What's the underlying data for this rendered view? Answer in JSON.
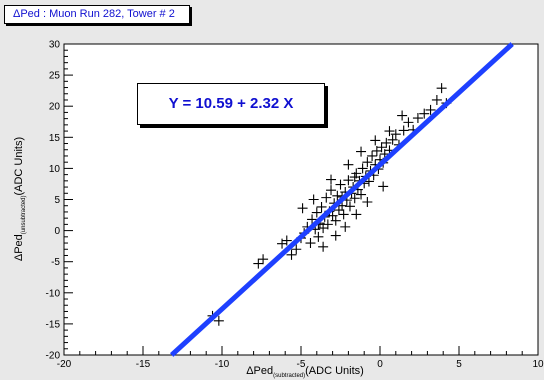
{
  "chart_data": {
    "type": "scatter",
    "title": "ΔPed : Muon Run 282, Tower # 2",
    "xlabel_main": "ΔPed",
    "xlabel_sub": "(subtracted)",
    "xlabel_units": "(ADC Units)",
    "ylabel_main": "ΔPed",
    "ylabel_sub": "(unsubtracted)",
    "ylabel_units": "(ADC Units)",
    "xlim": [
      -20,
      10
    ],
    "ylim": [
      -20,
      30
    ],
    "xticks": [
      "-20",
      "-15",
      "-10",
      "-5",
      "0",
      "5",
      "10"
    ],
    "yticks": [
      "-20",
      "-15",
      "-10",
      "-5",
      "0",
      "5",
      "10",
      "15",
      "20",
      "25",
      "30"
    ],
    "fit": {
      "label": "Y = 10.59 + 2.32 X",
      "intercept": 10.59,
      "slope": 2.32,
      "color": "#1e40ff"
    },
    "marker_color": "#000000",
    "series": [
      {
        "values": [
          [
            -10.6,
            -13.7
          ],
          [
            -10.2,
            -14.5
          ],
          [
            -7.7,
            -5.3
          ],
          [
            -7.4,
            -4.6
          ],
          [
            -6.2,
            -2.1
          ],
          [
            -5.9,
            -1.6
          ],
          [
            -5.6,
            -3.9
          ],
          [
            -5.3,
            -3.0
          ],
          [
            -5.0,
            -1.2
          ],
          [
            -4.8,
            -0.4
          ],
          [
            -4.6,
            0.6
          ],
          [
            -4.4,
            -2.0
          ],
          [
            -4.3,
            1.8
          ],
          [
            -4.1,
            0.2
          ],
          [
            -4.0,
            2.9
          ],
          [
            -3.9,
            -1.0
          ],
          [
            -3.8,
            1.2
          ],
          [
            -3.7,
            3.8
          ],
          [
            -3.6,
            0.4
          ],
          [
            -3.5,
            2.2
          ],
          [
            -3.4,
            5.3
          ],
          [
            -3.3,
            1.0
          ],
          [
            -3.2,
            3.1
          ],
          [
            -3.1,
            6.5
          ],
          [
            -3.0,
            2.4
          ],
          [
            -2.9,
            4.4
          ],
          [
            -2.8,
            1.6
          ],
          [
            -2.7,
            5.6
          ],
          [
            -2.6,
            3.3
          ],
          [
            -2.5,
            7.4
          ],
          [
            -2.4,
            4.0
          ],
          [
            -2.3,
            2.6
          ],
          [
            -2.2,
            6.2
          ],
          [
            -2.1,
            4.9
          ],
          [
            -2.0,
            8.1
          ],
          [
            -1.9,
            3.9
          ],
          [
            -1.8,
            6.0
          ],
          [
            -1.7,
            7.0
          ],
          [
            -1.6,
            5.2
          ],
          [
            -1.5,
            9.2
          ],
          [
            -1.4,
            6.6
          ],
          [
            -1.3,
            8.0
          ],
          [
            -1.2,
            5.8
          ],
          [
            -1.1,
            10.0
          ],
          [
            -1.0,
            7.6
          ],
          [
            -0.9,
            8.7
          ],
          [
            -0.8,
            11.0
          ],
          [
            -0.7,
            7.9
          ],
          [
            -0.6,
            9.6
          ],
          [
            -0.5,
            12.0
          ],
          [
            -0.4,
            8.9
          ],
          [
            -0.3,
            10.6
          ],
          [
            -0.2,
            12.8
          ],
          [
            -0.1,
            9.9
          ],
          [
            0.0,
            11.4
          ],
          [
            0.1,
            13.4
          ],
          [
            0.2,
            10.9
          ],
          [
            0.3,
            12.3
          ],
          [
            0.4,
            14.1
          ],
          [
            0.6,
            12.9
          ],
          [
            0.8,
            14.6
          ],
          [
            1.0,
            15.5
          ],
          [
            1.2,
            13.8
          ],
          [
            1.5,
            16.1
          ],
          [
            1.8,
            17.4
          ],
          [
            2.1,
            16.2
          ],
          [
            2.4,
            18.1
          ],
          [
            2.8,
            18.8
          ],
          [
            3.2,
            19.4
          ],
          [
            3.6,
            21.0
          ],
          [
            3.9,
            22.9
          ],
          [
            4.2,
            20.5
          ],
          [
            -3.6,
            -2.6
          ],
          [
            -2.8,
            -0.8
          ],
          [
            -2.2,
            0.6
          ],
          [
            -1.5,
            2.6
          ],
          [
            -0.8,
            4.6
          ],
          [
            0.2,
            7.1
          ],
          [
            -4.9,
            3.6
          ],
          [
            -4.2,
            5.0
          ],
          [
            -3.1,
            8.2
          ],
          [
            -2.0,
            10.6
          ],
          [
            -1.2,
            12.7
          ],
          [
            -0.3,
            14.5
          ],
          [
            0.6,
            16.0
          ],
          [
            1.4,
            18.5
          ],
          [
            -3.9,
            1.0
          ],
          [
            -2.4,
            5.4
          ],
          [
            -1.6,
            8.6
          ]
        ]
      }
    ]
  }
}
